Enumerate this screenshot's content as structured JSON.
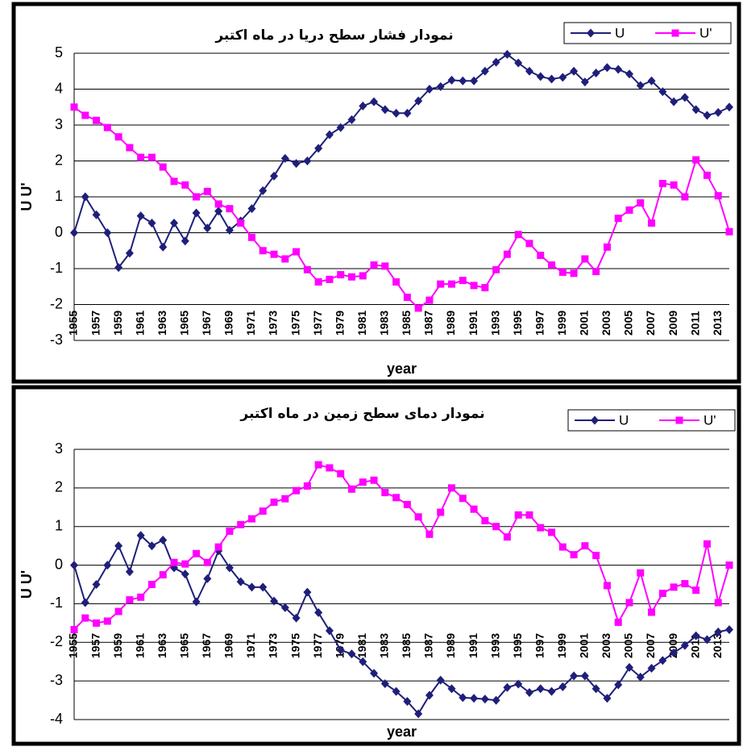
{
  "chart_data": [
    {
      "type": "line",
      "title": "نمودار فشار سطح دریا در ماه اکتبر",
      "x_label": "year",
      "y_label": "U U'",
      "x": [
        1955,
        1956,
        1957,
        1958,
        1959,
        1960,
        1961,
        1962,
        1963,
        1964,
        1965,
        1966,
        1967,
        1968,
        1969,
        1970,
        1971,
        1972,
        1973,
        1974,
        1975,
        1976,
        1977,
        1978,
        1979,
        1980,
        1981,
        1982,
        1983,
        1984,
        1985,
        1986,
        1987,
        1988,
        1989,
        1990,
        1991,
        1992,
        1993,
        1994,
        1995,
        1996,
        1997,
        1998,
        1999,
        2000,
        2001,
        2002,
        2003,
        2004,
        2005,
        2006,
        2007,
        2008,
        2009,
        2010,
        2011,
        2012,
        2013,
        2014
      ],
      "xlim": [
        1955,
        2014
      ],
      "xticks": [
        1955,
        1957,
        1959,
        1961,
        1963,
        1965,
        1967,
        1969,
        1971,
        1973,
        1975,
        1977,
        1979,
        1981,
        1983,
        1985,
        1987,
        1989,
        1991,
        1993,
        1995,
        1997,
        1999,
        2001,
        2003,
        2005,
        2007,
        2009,
        2011,
        2013
      ],
      "ylim": [
        -3,
        5
      ],
      "yticks": [
        -3,
        -2,
        -1,
        0,
        1,
        2,
        3,
        4,
        5
      ],
      "grid": true,
      "series": [
        {
          "name": "U",
          "color": "#1f1f7a",
          "marker": "diamond",
          "values": [
            0,
            1.0,
            0.5,
            0,
            -0.97,
            -0.57,
            0.47,
            0.27,
            -0.4,
            0.27,
            -0.23,
            0.55,
            0.13,
            0.6,
            0.07,
            0.33,
            0.67,
            1.17,
            1.58,
            2.07,
            1.93,
            2.0,
            2.35,
            2.73,
            2.93,
            3.15,
            3.53,
            3.65,
            3.43,
            3.33,
            3.33,
            3.67,
            4.0,
            4.07,
            4.25,
            4.23,
            4.23,
            4.5,
            4.75,
            4.97,
            4.73,
            4.5,
            4.35,
            4.28,
            4.33,
            4.5,
            4.2,
            4.45,
            4.6,
            4.55,
            4.42,
            4.1,
            4.23,
            3.93,
            3.65,
            3.77,
            3.43,
            3.27,
            3.35,
            3.5
          ]
        },
        {
          "name": "U'",
          "color": "#ff00ff",
          "marker": "square",
          "values": [
            3.5,
            3.27,
            3.13,
            2.93,
            2.67,
            2.37,
            2.1,
            2.1,
            1.83,
            1.43,
            1.33,
            1.0,
            1.15,
            0.8,
            0.67,
            0.27,
            -0.13,
            -0.5,
            -0.6,
            -0.73,
            -0.53,
            -1.03,
            -1.37,
            -1.3,
            -1.17,
            -1.23,
            -1.2,
            -0.9,
            -0.93,
            -1.37,
            -1.8,
            -2.1,
            -1.88,
            -1.43,
            -1.43,
            -1.33,
            -1.47,
            -1.53,
            -1.03,
            -0.6,
            -0.05,
            -0.3,
            -0.63,
            -0.9,
            -1.1,
            -1.13,
            -0.73,
            -1.08,
            -0.4,
            0.4,
            0.63,
            0.83,
            0.27,
            1.37,
            1.33,
            1.0,
            2.03,
            1.6,
            1.03,
            0.03
          ]
        }
      ]
    },
    {
      "type": "line",
      "title": "نمودار دمای سطح زمین در ماه اکتبر",
      "x_label": "year",
      "y_label": "U U'",
      "x": [
        1955,
        1956,
        1957,
        1958,
        1959,
        1960,
        1961,
        1962,
        1963,
        1964,
        1965,
        1966,
        1967,
        1968,
        1969,
        1970,
        1971,
        1972,
        1973,
        1974,
        1975,
        1976,
        1977,
        1978,
        1979,
        1980,
        1981,
        1982,
        1983,
        1984,
        1985,
        1986,
        1987,
        1988,
        1989,
        1990,
        1991,
        1992,
        1993,
        1994,
        1995,
        1996,
        1997,
        1998,
        1999,
        2000,
        2001,
        2002,
        2003,
        2004,
        2005,
        2006,
        2007,
        2008,
        2009,
        2010,
        2011,
        2012,
        2013,
        2014
      ],
      "xlim": [
        1955,
        2014
      ],
      "xticks": [
        1955,
        1957,
        1959,
        1961,
        1963,
        1965,
        1967,
        1969,
        1971,
        1973,
        1975,
        1977,
        1979,
        1981,
        1983,
        1985,
        1987,
        1989,
        1991,
        1993,
        1995,
        1997,
        1999,
        2001,
        2003,
        2005,
        2007,
        2009,
        2011,
        2013
      ],
      "ylim": [
        -4,
        3
      ],
      "yticks": [
        -4,
        -3,
        -2,
        -1,
        0,
        1,
        2,
        3
      ],
      "grid": true,
      "series": [
        {
          "name": "U",
          "color": "#1f1f7a",
          "marker": "diamond",
          "values": [
            0,
            -0.97,
            -0.5,
            0,
            0.5,
            -0.17,
            0.77,
            0.5,
            0.65,
            -0.07,
            -0.23,
            -0.95,
            -0.35,
            0.37,
            -0.07,
            -0.43,
            -0.57,
            -0.57,
            -0.93,
            -1.1,
            -1.37,
            -0.7,
            -1.23,
            -1.7,
            -2.2,
            -2.3,
            -2.5,
            -2.8,
            -3.07,
            -3.27,
            -3.53,
            -3.85,
            -3.37,
            -2.98,
            -3.2,
            -3.43,
            -3.45,
            -3.47,
            -3.5,
            -3.17,
            -3.08,
            -3.3,
            -3.2,
            -3.27,
            -3.15,
            -2.87,
            -2.87,
            -3.2,
            -3.45,
            -3.1,
            -2.65,
            -2.9,
            -2.67,
            -2.47,
            -2.27,
            -2.08,
            -1.83,
            -1.93,
            -1.73,
            -1.67
          ]
        },
        {
          "name": "U'",
          "color": "#ff00ff",
          "marker": "square",
          "values": [
            -1.67,
            -1.37,
            -1.5,
            -1.45,
            -1.2,
            -0.9,
            -0.83,
            -0.5,
            -0.25,
            0.07,
            0.03,
            0.3,
            0.07,
            0.47,
            0.88,
            1.05,
            1.2,
            1.4,
            1.63,
            1.72,
            1.93,
            2.05,
            2.6,
            2.52,
            2.37,
            1.97,
            2.15,
            2.2,
            1.88,
            1.75,
            1.57,
            1.25,
            0.8,
            1.37,
            2.0,
            1.73,
            1.45,
            1.15,
            1.0,
            0.73,
            1.3,
            1.3,
            0.97,
            0.85,
            0.47,
            0.27,
            0.5,
            0.25,
            -0.53,
            -1.48,
            -0.97,
            -0.2,
            -1.22,
            -0.73,
            -0.57,
            -0.48,
            -0.65,
            0.55,
            -0.97,
            0
          ]
        }
      ]
    }
  ]
}
